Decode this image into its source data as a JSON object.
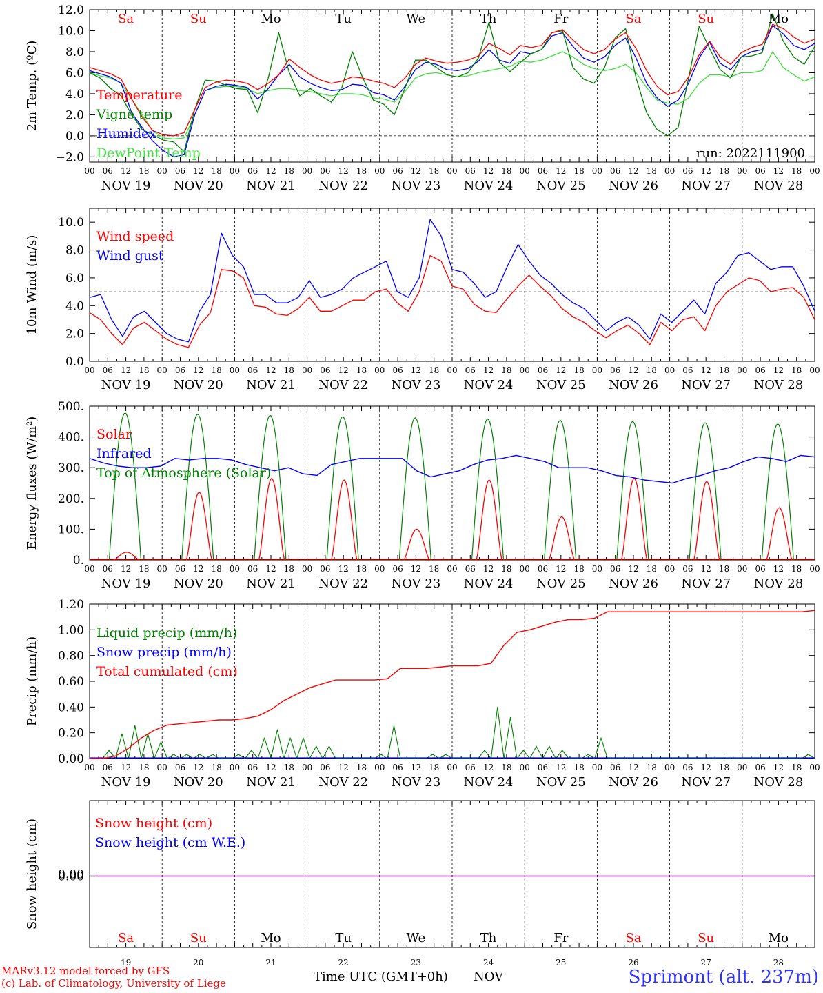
{
  "chart_data": [
    {
      "type": "line",
      "ylabel": "2m Temp. (ºC)",
      "ylim": [
        -2.5,
        12.0
      ],
      "yticks": [
        -2.0,
        0.0,
        2.0,
        4.0,
        6.0,
        8.0,
        10.0,
        12.0
      ],
      "ytick_labels": [
        "−2.0",
        "0.0",
        "2.0",
        "4.0",
        "6.0",
        "8.0",
        "10.0",
        "12.0"
      ],
      "ref_lines": [
        0.0
      ],
      "annotation": "run: 2022111900",
      "day_names": [
        "Sa",
        "Su",
        "Mo",
        "Tu",
        "We",
        "Th",
        "Fr",
        "Sa",
        "Su",
        "Mo"
      ],
      "series": [
        {
          "name": "Temperature",
          "color": "#ff0000",
          "values": [
            6.5,
            6.2,
            5.9,
            5.4,
            3.5,
            1.8,
            0.5,
            0.1,
            0.0,
            0.3,
            2.5,
            4.6,
            5.1,
            5.3,
            5.2,
            5.0,
            4.4,
            5.0,
            5.8,
            7.3,
            6.5,
            5.8,
            5.3,
            5.0,
            5.2,
            5.6,
            5.5,
            5.2,
            5.0,
            4.6,
            5.5,
            6.8,
            7.4,
            7.1,
            6.9,
            7.0,
            7.2,
            7.6,
            8.8,
            8.3,
            7.7,
            8.6,
            8.4,
            8.6,
            9.8,
            10.1,
            9.1,
            8.2,
            7.8,
            8.2,
            9.2,
            9.8,
            8.3,
            6.2,
            4.7,
            3.9,
            4.2,
            5.6,
            7.7,
            9.0,
            7.5,
            6.8,
            7.9,
            8.4,
            8.7,
            10.6,
            10.2,
            9.4,
            8.8,
            9.2
          ]
        },
        {
          "name": "Vigne temp",
          "color": "#008000",
          "values": [
            6.0,
            5.5,
            4.5,
            3.8,
            2.0,
            0.6,
            0.1,
            -0.4,
            -0.6,
            -1.5,
            2.5,
            5.3,
            5.2,
            4.8,
            4.5,
            4.4,
            2.2,
            5.5,
            9.8,
            6.0,
            3.8,
            4.5,
            3.8,
            3.2,
            4.6,
            8.0,
            5.5,
            3.4,
            3.0,
            2.0,
            4.5,
            7.2,
            7.2,
            6.5,
            5.8,
            5.6,
            6.0,
            7.4,
            10.8,
            7.0,
            6.1,
            7.0,
            7.8,
            8.2,
            9.8,
            10.0,
            6.5,
            5.4,
            5.0,
            6.5,
            9.3,
            10.2,
            5.5,
            2.2,
            0.6,
            0.0,
            0.8,
            5.5,
            10.4,
            8.3,
            6.3,
            5.5,
            7.5,
            7.6,
            7.9,
            11.6,
            9.0,
            7.5,
            6.8,
            8.5
          ]
        },
        {
          "name": "Humidex",
          "color": "#0000ff",
          "values": [
            6.2,
            5.9,
            5.6,
            5.0,
            2.2,
            0.8,
            -0.5,
            -1.4,
            -2.0,
            -1.8,
            2.0,
            4.3,
            4.7,
            4.9,
            4.8,
            4.6,
            3.5,
            4.5,
            5.8,
            6.8,
            5.6,
            5.0,
            4.6,
            4.3,
            4.4,
            4.9,
            4.8,
            4.1,
            3.9,
            3.4,
            4.7,
            6.3,
            7.0,
            6.8,
            6.3,
            6.2,
            6.4,
            7.1,
            8.2,
            7.2,
            6.9,
            8.0,
            7.8,
            8.2,
            9.5,
            9.8,
            8.5,
            7.4,
            7.0,
            7.5,
            8.6,
            9.3,
            7.4,
            5.0,
            3.6,
            2.8,
            3.4,
            5.0,
            7.4,
            8.9,
            6.9,
            6.3,
            7.5,
            8.0,
            8.2,
            10.5,
            9.7,
            8.6,
            8.2,
            8.8
          ]
        },
        {
          "name": "DewPoint Temp",
          "color": "#40e040",
          "values": [
            6.0,
            5.7,
            5.5,
            5.0,
            3.5,
            2.0,
            0.5,
            -0.2,
            -0.3,
            -0.2,
            2.0,
            4.3,
            4.6,
            4.7,
            4.7,
            4.5,
            4.0,
            4.3,
            4.5,
            4.5,
            4.3,
            4.2,
            4.0,
            3.8,
            4.0,
            4.0,
            3.9,
            3.6,
            3.5,
            3.2,
            4.2,
            5.5,
            5.9,
            6.0,
            5.8,
            5.6,
            5.7,
            6.0,
            6.2,
            6.4,
            6.6,
            7.1,
            7.0,
            7.2,
            7.6,
            8.0,
            7.5,
            6.8,
            6.4,
            6.2,
            6.4,
            6.8,
            6.0,
            4.6,
            3.4,
            3.1,
            3.0,
            3.6,
            5.0,
            5.8,
            5.8,
            5.6,
            6.0,
            6.0,
            6.2,
            8.0,
            6.5,
            5.8,
            5.2,
            5.6
          ]
        }
      ]
    },
    {
      "type": "line",
      "ylabel": "10m Wind (m/s)",
      "ylim": [
        0.0,
        11.0
      ],
      "yticks": [
        0.0,
        2.0,
        4.0,
        6.0,
        8.0,
        10.0
      ],
      "ytick_labels": [
        "0.0",
        "2.0",
        "4.0",
        "6.0",
        "8.0",
        "10.0"
      ],
      "ref_lines": [
        5.0
      ],
      "series": [
        {
          "name": "Wind speed",
          "color": "#ff0000",
          "values": [
            3.5,
            3.0,
            2.0,
            1.2,
            2.4,
            2.8,
            2.2,
            1.6,
            1.2,
            1.0,
            2.6,
            3.5,
            6.6,
            6.5,
            6.0,
            4.0,
            3.9,
            3.4,
            3.3,
            3.8,
            4.6,
            3.6,
            3.6,
            4.0,
            4.4,
            4.4,
            5.0,
            5.2,
            4.2,
            3.6,
            5.0,
            7.6,
            7.2,
            5.4,
            5.2,
            4.1,
            3.6,
            3.5,
            4.5,
            5.4,
            6.2,
            5.4,
            4.7,
            3.8,
            3.2,
            2.8,
            2.2,
            1.7,
            2.2,
            2.6,
            2.0,
            1.2,
            2.8,
            2.2,
            3.0,
            3.2,
            2.2,
            4.0,
            5.0,
            5.5,
            6.0,
            5.8,
            5.0,
            5.2,
            5.3,
            4.6,
            3.0
          ]
        },
        {
          "name": "Wind gust",
          "color": "#0000ff",
          "values": [
            4.6,
            4.8,
            3.0,
            1.8,
            3.2,
            3.6,
            2.8,
            2.0,
            1.6,
            1.4,
            3.6,
            4.8,
            9.2,
            7.6,
            6.8,
            4.8,
            4.8,
            4.2,
            4.2,
            4.6,
            5.8,
            4.6,
            4.8,
            5.2,
            6.0,
            6.4,
            6.8,
            7.2,
            5.0,
            4.6,
            6.0,
            10.2,
            9.0,
            6.6,
            6.4,
            5.6,
            4.6,
            5.0,
            6.8,
            8.4,
            7.2,
            6.2,
            5.6,
            4.8,
            4.2,
            3.8,
            3.0,
            2.2,
            2.8,
            3.2,
            2.6,
            1.6,
            3.4,
            2.8,
            3.6,
            4.4,
            3.4,
            5.6,
            6.4,
            7.6,
            7.8,
            7.2,
            6.6,
            6.8,
            6.8,
            5.4,
            3.6
          ]
        }
      ]
    },
    {
      "type": "line",
      "ylabel": "Energy fluxes (W/m²)",
      "ylim": [
        0,
        500
      ],
      "yticks": [
        0,
        100,
        200,
        300,
        400,
        500
      ],
      "ytick_labels": [
        "0.",
        "100.",
        "200.",
        "300.",
        "400.",
        "500."
      ],
      "series": [
        {
          "name": "Solar",
          "color": "#ff0000",
          "daily_peaks": [
            25,
            220,
            265,
            260,
            100,
            260,
            140,
            265,
            255,
            170
          ]
        },
        {
          "name": "Infrared",
          "color": "#0000ff",
          "values": [
            330,
            315,
            305,
            300,
            300,
            305,
            330,
            325,
            330,
            330,
            325,
            310,
            300,
            290,
            300,
            280,
            275,
            310,
            320,
            330,
            330,
            330,
            330,
            290,
            270,
            280,
            290,
            310,
            325,
            330,
            340,
            330,
            320,
            300,
            300,
            300,
            290,
            275,
            270,
            260,
            255,
            250,
            265,
            275,
            290,
            300,
            320,
            335,
            330,
            320,
            340,
            335
          ]
        },
        {
          "name": "Top of Atmosphere (Solar)",
          "color": "#008000",
          "daily_peaks": [
            478,
            474,
            470,
            466,
            462,
            458,
            454,
            450,
            446,
            442
          ]
        }
      ]
    },
    {
      "type": "line",
      "ylabel": "Precip (mm/h)",
      "ylim": [
        0.0,
        1.2
      ],
      "yticks": [
        0.0,
        0.2,
        0.4,
        0.6,
        0.8,
        1.0,
        1.2
      ],
      "ytick_labels": [
        "0.00",
        "0.20",
        "0.40",
        "0.60",
        "0.80",
        "1.00",
        "1.20"
      ],
      "series": [
        {
          "name": "Liquid precip (mm/h)",
          "color": "#008000"
        },
        {
          "name": "Snow precip (mm/h)",
          "color": "#0000ff"
        },
        {
          "name": "Total cumulated (cm)",
          "color": "#ff0000",
          "values": [
            0.0,
            0.0,
            0.02,
            0.08,
            0.16,
            0.22,
            0.26,
            0.27,
            0.28,
            0.29,
            0.3,
            0.3,
            0.31,
            0.33,
            0.38,
            0.45,
            0.5,
            0.55,
            0.58,
            0.61,
            0.61,
            0.61,
            0.61,
            0.62,
            0.7,
            0.7,
            0.7,
            0.71,
            0.72,
            0.72,
            0.72,
            0.74,
            0.88,
            0.98,
            1.0,
            1.03,
            1.06,
            1.08,
            1.08,
            1.09,
            1.14,
            1.14,
            1.14,
            1.14,
            1.14,
            1.14,
            1.14,
            1.14,
            1.14,
            1.14,
            1.14,
            1.14,
            1.14,
            1.14,
            1.14,
            1.14,
            1.15
          ]
        }
      ]
    },
    {
      "type": "line",
      "ylabel": "Snow height (cm)",
      "yticks": [
        0.0
      ],
      "ytick_labels": [
        "0.00"
      ],
      "series": [
        {
          "name": "Snow height (cm)",
          "color": "#ff0000",
          "values": [
            0,
            0
          ]
        },
        {
          "name": "Snow height (cm W.E.)",
          "color": "#0000ff",
          "values": [
            0,
            0
          ]
        }
      ]
    }
  ],
  "x_axis": {
    "hour_labels": [
      "00",
      "06",
      "12",
      "18"
    ],
    "final_hour_label": "00",
    "date_labels": [
      "NOV 19",
      "NOV 20",
      "NOV 21",
      "NOV 22",
      "NOV 23",
      "NOV 24",
      "NOV 25",
      "NOV 26",
      "NOV 27",
      "NOV 28"
    ],
    "day_numbers": [
      "19",
      "20",
      "21",
      "22",
      "23",
      "24",
      "25",
      "26",
      "27",
      "28"
    ],
    "weekdays": [
      "Sa",
      "Su",
      "Mo",
      "Tu",
      "We",
      "Th",
      "Fr",
      "Sa",
      "Su",
      "Mo"
    ],
    "weekday_colors": [
      "#ff0000",
      "#ff0000",
      "#000000",
      "#000000",
      "#000000",
      "#000000",
      "#000000",
      "#ff0000",
      "#ff0000",
      "#000000"
    ],
    "title": "Time UTC (GMT+0h)",
    "month": "NOV"
  },
  "footer": {
    "credit_line1": "MARv3.12 model forced by GFS",
    "credit_line2": "(c) Lab. of Climatology, University of Liege",
    "station": "Sprimont (alt. 237m)"
  }
}
